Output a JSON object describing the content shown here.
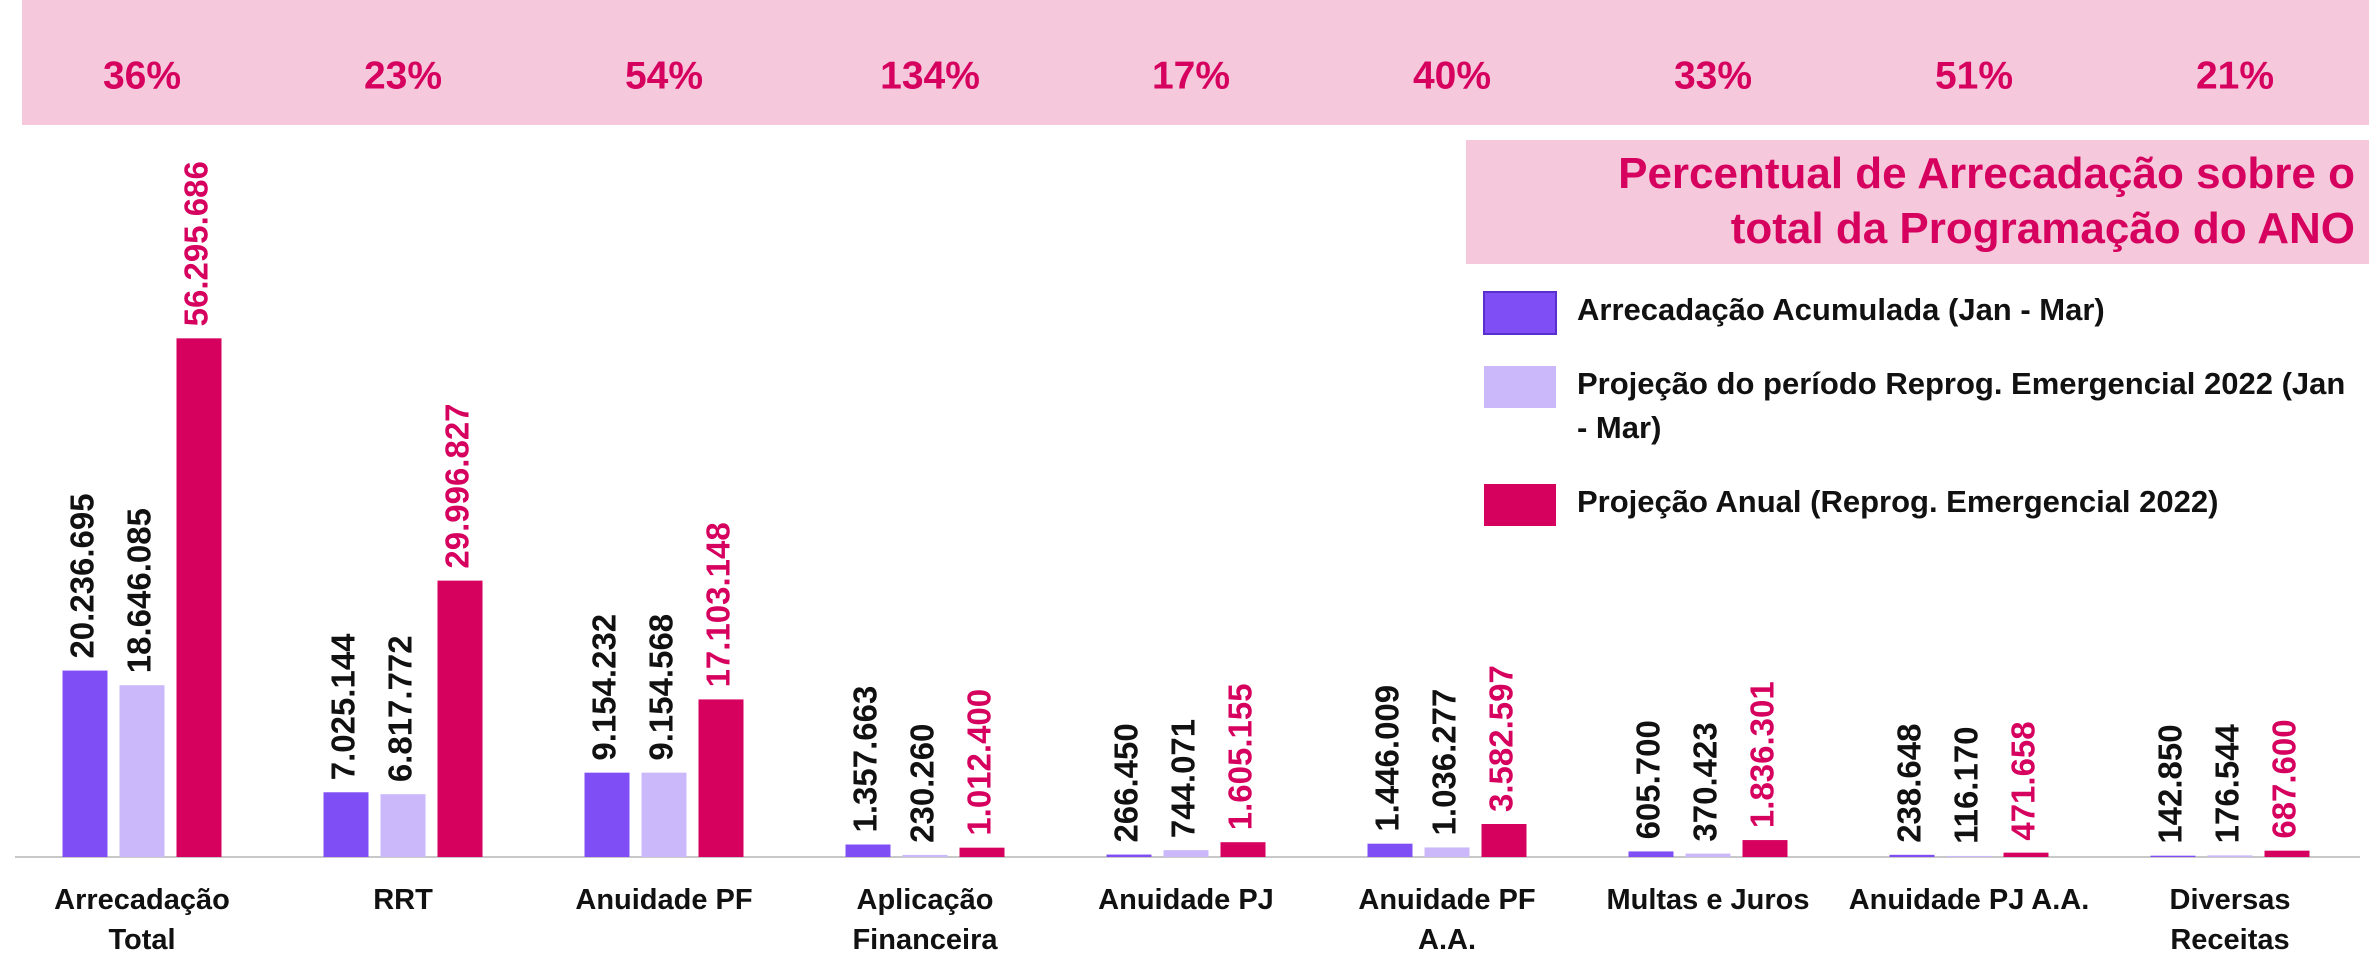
{
  "chart_data": {
    "type": "bar",
    "title": "Percentual de Arrecadação sobre o total da Programação do ANO",
    "annotations": [
      "36%",
      "23%",
      "54%",
      "134%",
      "17%",
      "40%",
      "33%",
      "51%",
      "21%"
    ],
    "categories": [
      "Arrecadação Total",
      "RRT",
      "Anuidade PF",
      "Aplicação Financeira",
      "Anuidade PJ",
      "Anuidade PF A.A.",
      "Multas e Juros",
      "Anuidade PJ A.A.",
      "Diversas Receitas"
    ],
    "series": [
      {
        "name": "Arrecadação Acumulada (Jan - Mar)",
        "color": "#7f4ff5",
        "values": [
          20236695,
          7025144,
          9154232,
          1357663,
          266450,
          1446009,
          605700,
          238648,
          142850
        ],
        "value_labels": [
          "20.236.695",
          "7.025.144",
          "9.154.232",
          "1.357.663",
          "266.450",
          "1.446.009",
          "605.700",
          "238.648",
          "142.850"
        ]
      },
      {
        "name": "Projeção do período Reprog. Emergencial 2022 (Jan - Mar)",
        "color": "#cbb8fb",
        "values": [
          18646085,
          6817772,
          9154568,
          230260,
          744071,
          1036277,
          370423,
          116170,
          176544
        ],
        "value_labels": [
          "18.646.085",
          "6.817.772",
          "9.154.568",
          "230.260",
          "744.071",
          "1.036.277",
          "370.423",
          "116.170",
          "176.544"
        ]
      },
      {
        "name": "Projeção Anual (Reprog. Emergencial 2022)",
        "color": "#d6005f",
        "values": [
          56295686,
          29996827,
          17103148,
          1012400,
          1605155,
          3582597,
          1836301,
          471658,
          687600
        ],
        "value_labels": [
          "56.295.686",
          "29.996.827",
          "17.103.148",
          "1.012.400",
          "1.605.155",
          "3.582.597",
          "1.836.301",
          "471.658",
          "687.600"
        ]
      }
    ],
    "ylim": [
      0,
      75000000
    ]
  }
}
